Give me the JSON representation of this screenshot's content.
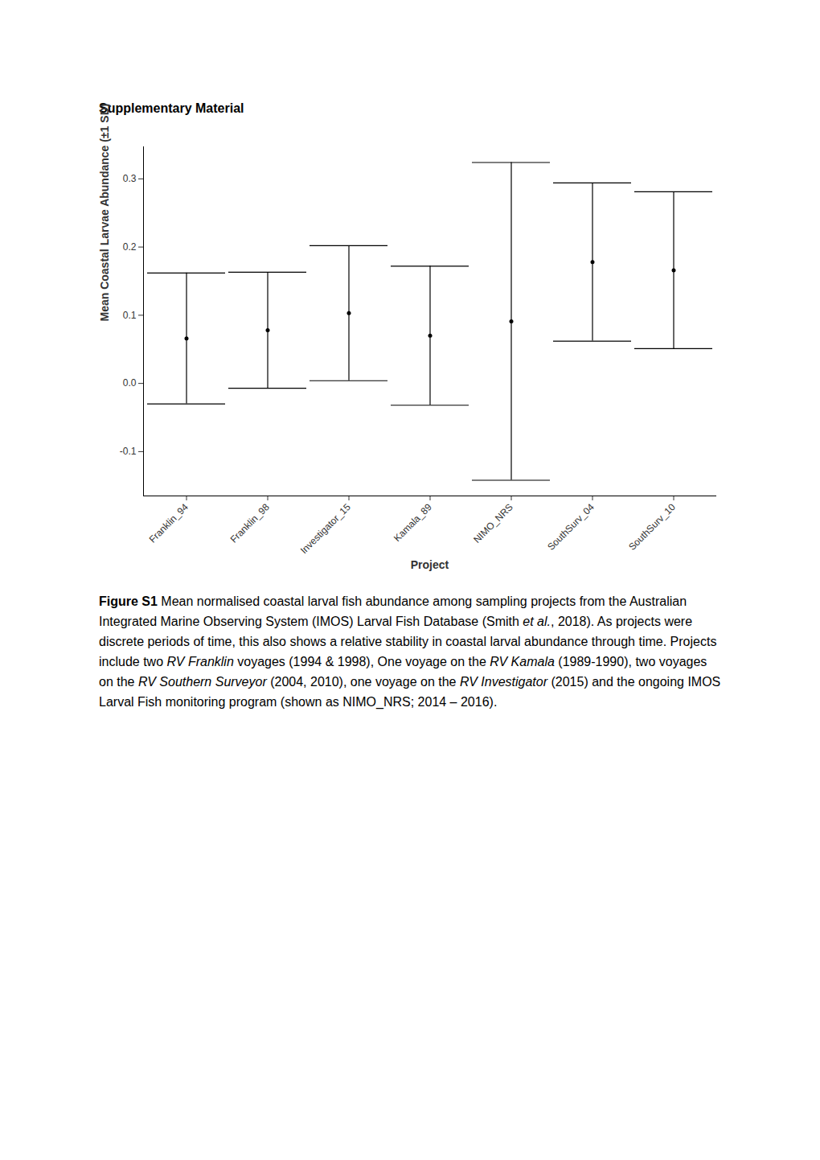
{
  "heading": "Supplementary Material",
  "chart_data": {
    "type": "errorbar",
    "x_label": "Project",
    "y_label": "Mean Coastal Larvae Abundance (±1 SD)",
    "categories": [
      "Franklin_94",
      "Franklin_98",
      "Investigator_15",
      "Kamala_89",
      "NIMO_NRS",
      "SouthSurv_04",
      "SouthSurv_10"
    ],
    "values": [
      0.066,
      0.078,
      0.103,
      0.07,
      0.091,
      0.178,
      0.166
    ],
    "error": [
      0.096,
      0.085,
      0.099,
      0.102,
      0.233,
      0.116,
      0.115
    ],
    "color": "#000000",
    "ylim": [
      -0.165,
      0.347
    ],
    "yticks": [
      -0.1,
      {
        "value": 0,
        "label": "0.0"
      },
      0.1,
      0.2,
      0.3
    ],
    "grid": false
  },
  "caption": [
    {
      "text": "Figure S1",
      "bold": true
    },
    {
      "text": " Mean normalised coastal larval fish abundance among sampling projects from the Australian Integrated Marine Observing System (IMOS) Larval Fish Database (Smith "
    },
    {
      "text": "et al.",
      "italic": true
    },
    {
      "text": ", 2018). As projects were discrete periods of time, this also shows a relative stability in coastal larval abundance through time. Projects include two "
    },
    {
      "text": "RV Franklin",
      "italic": true
    },
    {
      "text": " voyages (1994 & 1998), One voyage on the "
    },
    {
      "text": "RV Kamala",
      "italic": true
    },
    {
      "text": " (1989-1990), two voyages on the "
    },
    {
      "text": "RV Southern Surveyor",
      "italic": true
    },
    {
      "text": " (2004, 2010), one voyage on the "
    },
    {
      "text": "RV Investigator",
      "italic": true
    },
    {
      "text": " (2015) and the ongoing IMOS Larval Fish monitoring program (shown as NIMO_NRS; 2014 – 2016)."
    }
  ]
}
